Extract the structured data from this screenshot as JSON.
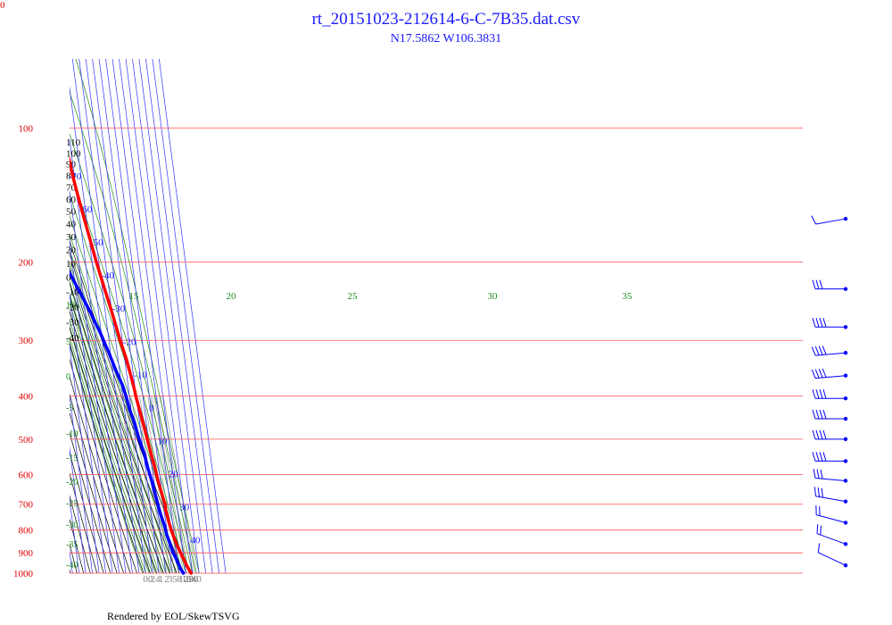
{
  "header": {
    "title": "rt_20151023-212614-6-C-7B35.dat.csv",
    "subtitle": "N17.5862 W106.3831",
    "corner_label": "0"
  },
  "footer": {
    "credit": "Rendered by EOL/SkewTSVG"
  },
  "colors": {
    "title": "#1a1aff",
    "isobar": "#ff4d4d",
    "isotherm": "#3333ff",
    "dry_adiabat": "#000000",
    "moist_adiabat": "#1a8a1a",
    "mixing_ratio": "#999999",
    "temperature": "#ff0000",
    "dewpoint": "#0000ff",
    "wind": "#0000ff"
  },
  "chart_data": {
    "type": "skew-t",
    "pressure_range_hpa": [
      100,
      1000
    ],
    "isobars_hpa": [
      100,
      200,
      300,
      400,
      500,
      600,
      700,
      800,
      900,
      1000
    ],
    "isotherms_c": [
      -110,
      -100,
      -90,
      -80,
      -70,
      -60,
      -50,
      -40,
      -30,
      -20,
      -10,
      0,
      10,
      20,
      30,
      40
    ],
    "dry_adiabats_k": [
      110,
      120,
      130,
      140,
      150,
      160,
      170,
      180,
      190,
      200,
      210,
      220,
      230,
      240,
      250,
      260,
      270,
      280,
      290,
      300
    ],
    "dry_adiabat_left_labels": [
      "110",
      "100",
      "90",
      "80",
      "70",
      "60",
      "50",
      "40",
      "30",
      "20",
      "10",
      "0",
      "-10",
      "-20",
      "-30",
      "-40"
    ],
    "moist_adiabat_top_labels": [
      "15",
      "20",
      "25",
      "30",
      "35"
    ],
    "moist_adiabat_left_labels": [
      "10",
      "5",
      "0",
      "-5",
      "-10",
      "-15",
      "-20",
      "-25",
      "-30",
      "-35",
      "-40"
    ],
    "mixing_ratio_labels": [
      "0.2",
      "0.4",
      "1",
      "2",
      "3",
      "5",
      "8",
      "12",
      "16",
      "20",
      "30",
      "40"
    ],
    "series": [
      {
        "name": "temperature",
        "p": [
          65,
          68,
          72,
          76,
          80,
          85,
          88,
          92,
          96,
          100,
          110,
          130,
          150,
          175,
          200,
          230,
          260,
          300,
          330,
          360,
          390,
          400,
          430,
          460,
          500,
          540,
          580,
          620,
          660,
          690,
          700,
          720,
          760,
          800,
          840,
          880,
          920,
          960,
          1000
        ],
        "t": [
          -74.5,
          -75.5,
          -76.2,
          -77,
          -78.6,
          -81,
          -82,
          -80.8,
          -79.8,
          -78.5,
          -76.5,
          -71.8,
          -66.2,
          -59.4,
          -53.6,
          -46.5,
          -40,
          -33.2,
          -27.5,
          -24,
          -21,
          -20.6,
          -17.6,
          -14.8,
          -11.7,
          -8.8,
          -5.8,
          -3.7,
          -0.6,
          1.5,
          2.6,
          2.1,
          4.1,
          6.7,
          9.8,
          13.8,
          18.5,
          23,
          28
        ]
      },
      {
        "name": "dewpoint",
        "p": [
          180,
          200,
          230,
          260,
          290,
          320,
          350,
          380,
          400,
          430,
          460,
          500,
          540,
          580,
          620,
          660,
          700,
          740,
          780,
          820,
          860,
          900,
          940,
          980,
          1000
        ],
        "t": [
          -117.5,
          -102.5,
          -86,
          -72,
          -61,
          -52.5,
          -45.5,
          -38,
          -35.2,
          -32.2,
          -27.6,
          -24,
          -18.8,
          -16.5,
          -13.2,
          -10.8,
          -8.4,
          -6.2,
          -2.8,
          -1.1,
          2.2,
          5.2,
          9.5,
          13.5,
          16.5
        ]
      }
    ],
    "wind_barbs": [
      {
        "p": 160,
        "dir_deg": 260,
        "speed_kt": 10
      },
      {
        "p": 230,
        "dir_deg": 270,
        "speed_kt": 30
      },
      {
        "p": 280,
        "dir_deg": 270,
        "speed_kt": 40
      },
      {
        "p": 320,
        "dir_deg": 265,
        "speed_kt": 40
      },
      {
        "p": 360,
        "dir_deg": 265,
        "speed_kt": 40
      },
      {
        "p": 405,
        "dir_deg": 270,
        "speed_kt": 40
      },
      {
        "p": 450,
        "dir_deg": 270,
        "speed_kt": 40
      },
      {
        "p": 500,
        "dir_deg": 270,
        "speed_kt": 40
      },
      {
        "p": 560,
        "dir_deg": 270,
        "speed_kt": 40
      },
      {
        "p": 620,
        "dir_deg": 275,
        "speed_kt": 30
      },
      {
        "p": 690,
        "dir_deg": 280,
        "speed_kt": 30
      },
      {
        "p": 770,
        "dir_deg": 285,
        "speed_kt": 20
      },
      {
        "p": 860,
        "dir_deg": 290,
        "speed_kt": 20
      },
      {
        "p": 960,
        "dir_deg": 295,
        "speed_kt": 10
      }
    ]
  }
}
